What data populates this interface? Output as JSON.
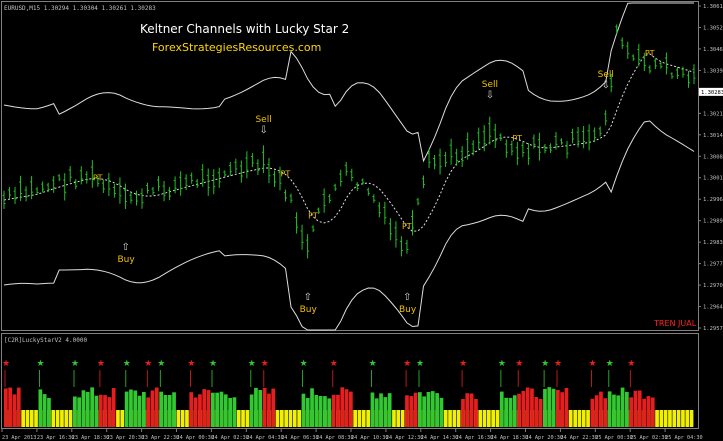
{
  "window": {
    "symbol_info": "EURUSD,M15  1.30294 1.30304 1.30261 1.30283",
    "indicator_info": "[C2R]LuckyStarV2  4.0000"
  },
  "overlay": {
    "title": "Keltner Channels with Lucky Star 2",
    "site": "ForexStrategiesResources.com",
    "trend_text": "TREN JUAL"
  },
  "price_axis": {
    "labels": [
      "1.30618",
      "1.30529",
      "1.30460",
      "1.30395",
      "1.30283",
      "1.30214",
      "1.30145",
      "1.30085",
      "1.30016",
      "1.29960",
      "1.29895",
      "1.29835",
      "1.29770",
      "1.29705",
      "1.29640",
      "1.29578"
    ],
    "current": "1.30283"
  },
  "time_axis": {
    "labels": [
      "23 Apr 2013",
      "23 Apr 16:30",
      "23 Apr 18:30",
      "23 Apr 20:30",
      "23 Apr 22:30",
      "24 Apr 00:30",
      "24 Apr 02:30",
      "24 Apr 04:30",
      "24 Apr 06:30",
      "24 Apr 08:30",
      "24 Apr 10:30",
      "24 Apr 12:30",
      "24 Apr 14:30",
      "24 Apr 16:30",
      "24 Apr 18:30",
      "24 Apr 20:30",
      "24 Apr 22:30",
      "25 Apr 00:30",
      "25 Apr 02:30",
      "25 Apr 04:30"
    ]
  },
  "signals": [
    {
      "label": "Buy",
      "dir": "up",
      "bar": 22
    },
    {
      "label": "Sell",
      "dir": "down",
      "bar": 47
    },
    {
      "label": "Buy",
      "dir": "up",
      "bar": 55
    },
    {
      "label": "Buy",
      "dir": "up",
      "bar": 73
    },
    {
      "label": "Sell",
      "dir": "down",
      "bar": 88
    },
    {
      "label": "Sell",
      "dir": "down",
      "bar": 109
    }
  ],
  "pt_labels": [
    {
      "label": "PT",
      "bar": 17
    },
    {
      "label": "PT",
      "bar": 51
    },
    {
      "label": "PT",
      "bar": 56
    },
    {
      "label": "PT",
      "bar": 73
    },
    {
      "label": "PT",
      "bar": 93
    },
    {
      "label": "PT",
      "bar": 117
    }
  ],
  "colors": {
    "background": "#000000",
    "candles": "#22c022",
    "bands": "#dcdcdc",
    "middle_line": "#dcdcdc",
    "signal_text": "#f0c000",
    "title_text": "#ffffff",
    "site_text": "#ffd700",
    "trend_text": "#ff2020",
    "axis_text": "#c0c0c0",
    "hist_green": "#32c832",
    "hist_red": "#e61e1e",
    "hist_yellow": "#f0f000"
  }
}
